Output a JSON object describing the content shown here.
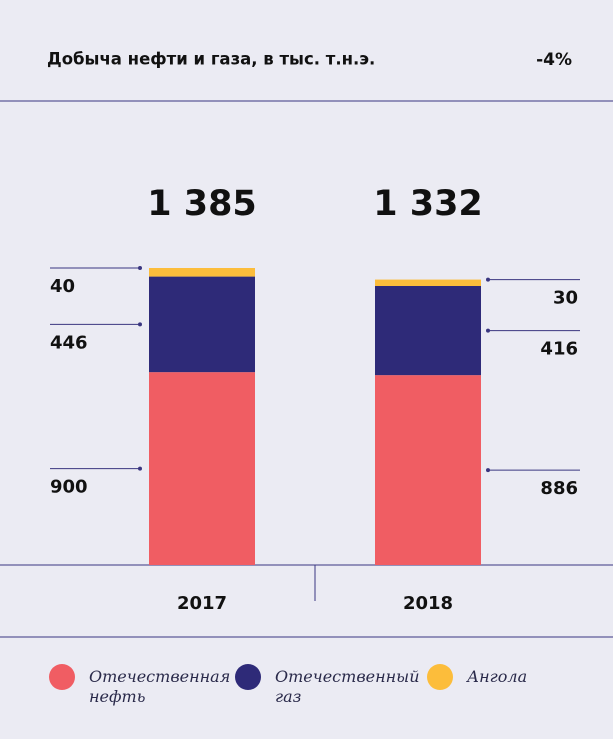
{
  "chart_data": {
    "type": "stacked_bar",
    "title": "Добыча нефти и газа, в тыс. т.н.э.",
    "change": "-4%",
    "categories": [
      "2017",
      "2018"
    ],
    "series": [
      {
        "name": "Отечественная нефть",
        "color": "#f05d63",
        "values": [
          900,
          886
        ]
      },
      {
        "name": "Отечественный газ",
        "color": "#2e2a78",
        "values": [
          446,
          416
        ]
      },
      {
        "name": "Ангола",
        "color": "#fcbd3b",
        "values": [
          40,
          30
        ]
      }
    ],
    "totals": [
      1385,
      1332
    ],
    "total_labels": [
      "1 385",
      "1 332"
    ],
    "ylim": [
      0,
      1400
    ]
  }
}
